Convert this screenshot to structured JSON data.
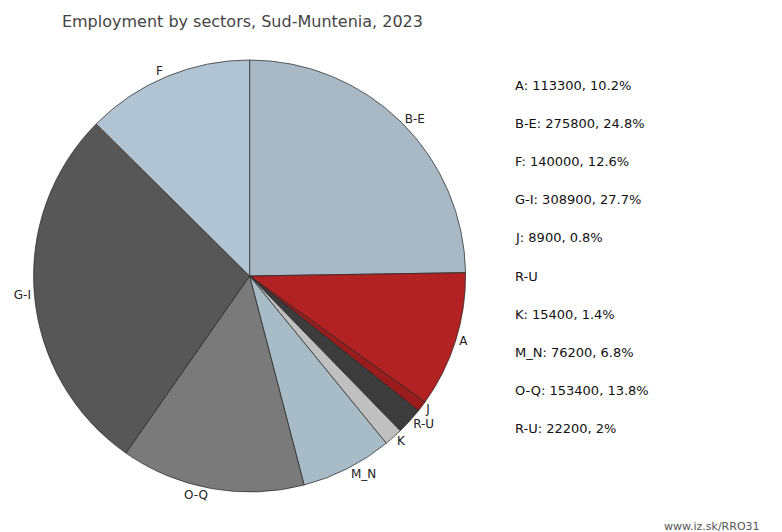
{
  "chart_data": {
    "type": "pie",
    "title": "Employment by sectors, Sud-Muntenia, 2023",
    "categories": [
      "B-E",
      "A",
      "J",
      "R-U",
      "K",
      "M_N",
      "O-Q",
      "G-I",
      "F"
    ],
    "values": [
      275800,
      113300,
      8900,
      22200,
      15400,
      76200,
      153400,
      308900,
      140000
    ],
    "colors": [
      "#a8b8c4",
      "#b22222",
      "#9b1c1c",
      "#3c3c3c",
      "#c0c0c0",
      "#a8bcc8",
      "#7a7a7a",
      "#575757",
      "#b0c4d4"
    ],
    "annotations": [
      "A: 113300, 10.2%",
      "B-E: 275800, 24.8%",
      "F: 140000, 12.6%",
      "G-I: 308900, 27.7%",
      "J: 8900, 0.8%",
      "R-U",
      "K: 15400, 1.4%",
      "M_N: 76200, 6.8%",
      "O-Q: 153400, 13.8%",
      "R-U: 22200, 2%",
      "www.iz.sk/RRO31"
    ]
  }
}
